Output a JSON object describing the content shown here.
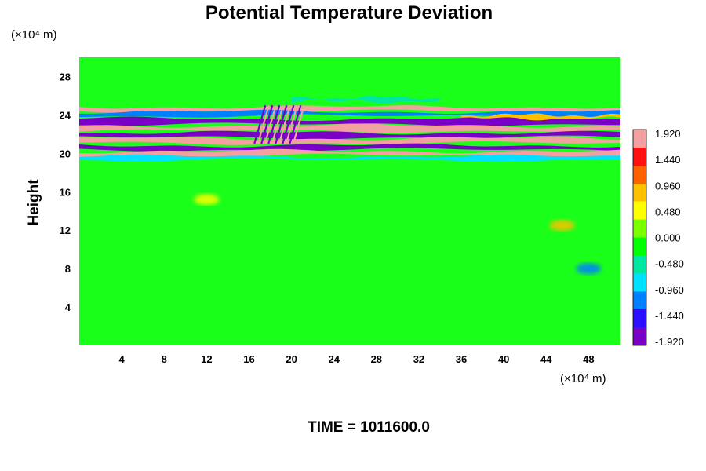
{
  "chart_data": {
    "type": "heatmap",
    "title": "Potential Temperature Deviation",
    "ylabel": "Height",
    "xlabel": "",
    "x_unit_label": "(×10⁴ m)",
    "y_unit_label": "(×10⁴ m)",
    "xlim": [
      0,
      51
    ],
    "ylim": [
      0,
      30
    ],
    "x_ticks": [
      4,
      8,
      12,
      16,
      20,
      24,
      28,
      32,
      36,
      40,
      44,
      48
    ],
    "y_ticks": [
      4,
      8,
      12,
      16,
      20,
      24,
      28
    ],
    "colorbar": {
      "min": -1.92,
      "max": 1.92,
      "tick_labels": [
        "1.920",
        "1.440",
        "0.960",
        "0.480",
        "0.000",
        "-0.480",
        "-0.960",
        "-1.440",
        "-1.920"
      ],
      "colormap": "rainbow",
      "colors": [
        "#7a00c8",
        "#2a10ff",
        "#0080ff",
        "#00e0ff",
        "#00e8a0",
        "#00ff00",
        "#7aff00",
        "#ffff00",
        "#ffc000",
        "#ff6000",
        "#ff1010",
        "#f4a0a0"
      ]
    },
    "bands": [
      {
        "y": 24.6,
        "value": 1.6,
        "x_range": [
          0,
          51
        ],
        "thickness": 0.45
      },
      {
        "y": 24.1,
        "value": -1.1,
        "x_range": [
          0,
          51
        ],
        "thickness": 0.45
      },
      {
        "y": 23.3,
        "value": -1.92,
        "x_range": [
          0,
          51
        ],
        "thickness": 0.6
      },
      {
        "y": 22.6,
        "value": 1.92,
        "x_range": [
          0,
          51
        ],
        "thickness": 0.55
      },
      {
        "y": 21.9,
        "value": -1.92,
        "x_range": [
          0,
          51
        ],
        "thickness": 0.5
      },
      {
        "y": 21.3,
        "value": 1.92,
        "x_range": [
          0,
          51
        ],
        "thickness": 0.5
      },
      {
        "y": 20.6,
        "value": -1.92,
        "x_range": [
          0,
          51
        ],
        "thickness": 0.45
      },
      {
        "y": 20.0,
        "value": 1.92,
        "x_range": [
          0,
          51
        ],
        "thickness": 0.45
      },
      {
        "y": 19.5,
        "value": -0.8,
        "x_range": [
          0,
          51
        ],
        "thickness": 0.35
      },
      {
        "y": 25.6,
        "value": -0.6,
        "x_range": [
          20,
          34
        ],
        "thickness": 0.4
      },
      {
        "y": 23.8,
        "value": 0.9,
        "x_range": [
          36,
          51
        ],
        "thickness": 0.35
      }
    ],
    "features": [
      {
        "name": "wave packet",
        "x_range": [
          16.5,
          20.5
        ],
        "y_range": [
          21.0,
          25.0
        ],
        "value": 1.92
      },
      {
        "name": "perturbation",
        "x_center": 12,
        "y_center": 15.2,
        "value": 0.5
      },
      {
        "name": "perturbation",
        "x_center": 45.5,
        "y_center": 12.5,
        "value": 0.9
      },
      {
        "name": "perturbation",
        "x_center": 48,
        "y_center": 8,
        "value": -1.2
      }
    ],
    "background_value": 0.0
  },
  "footer": {
    "time_label": "TIME = 1011600.0"
  }
}
